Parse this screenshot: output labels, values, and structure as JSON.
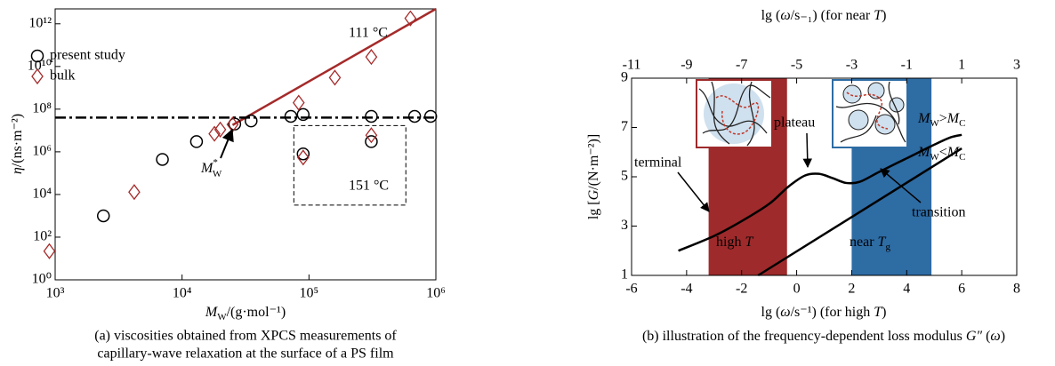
{
  "chart_data": [
    {
      "type": "scatter",
      "xscale": "log",
      "yscale": "log",
      "xlim": [
        1000,
        1000000
      ],
      "ylim": [
        1,
        5000000000000
      ],
      "xticks": [
        {
          "value": 1000,
          "label": "10³"
        },
        {
          "value": 10000,
          "label": "10⁴"
        },
        {
          "value": 100000,
          "label": "10⁵"
        },
        {
          "value": 1000000,
          "label": "10⁶"
        }
      ],
      "yticks": [
        {
          "value": 1,
          "label": "10⁰"
        },
        {
          "value": 100,
          "label": "10²"
        },
        {
          "value": 10000,
          "label": "10⁴"
        },
        {
          "value": 1000000,
          "label": "10⁶"
        },
        {
          "value": 100000000,
          "label": "10⁸"
        },
        {
          "value": 10000000000,
          "label": "10¹⁰"
        },
        {
          "value": 1000000000000,
          "label": "10¹²"
        }
      ],
      "xlabel": [
        "M",
        "W",
        "/(g·mol⁻¹)"
      ],
      "ylabel": [
        "η",
        "/(ns·m⁻²)"
      ],
      "legend": "upper left",
      "series": [
        {
          "name": "present study",
          "marker": "circle",
          "color": "#000000",
          "x": [
            2400,
            7000,
            13000,
            26000,
            35000,
            72000,
            90000,
            90000,
            310000,
            310000,
            680000,
            910000
          ],
          "y": [
            1000,
            440000,
            3000000,
            20000000,
            28000000,
            46000000,
            56000000,
            800000,
            46000000,
            3000000,
            46000000,
            46000000
          ]
        },
        {
          "name": "bulk",
          "marker": "diamond",
          "color": "#a52a2a",
          "x": [
            900,
            4200,
            18000,
            20000,
            25000,
            83000,
            160000,
            310000,
            630000,
            90000,
            310000
          ],
          "y": [
            22,
            13000,
            7000000,
            11000000,
            19000000,
            200000000,
            3000000000,
            28000000000,
            1800000000000,
            540000,
            6000000
          ]
        }
      ],
      "lines": [
        {
          "color": "#a52a2a",
          "style": "solid",
          "x": [
            25000,
            1000000
          ],
          "y": [
            18000000,
            5000000000000
          ]
        },
        {
          "color": "#000000",
          "style": "dashdot",
          "x": [
            1000,
            1000000
          ],
          "y": [
            40000000,
            40000000
          ]
        }
      ],
      "box": {
        "x": [
          76000,
          580000
        ],
        "y": [
          3200,
          17000000
        ]
      },
      "annotations": {
        "hot": "111 °C",
        "warm": "151 °C",
        "mw": [
          "M",
          "*",
          "W"
        ]
      },
      "caption": [
        "(a) viscosities obtained from XPCS measurements of",
        "capillary-wave relaxation at the surface of a PS film"
      ]
    },
    {
      "type": "line",
      "xlim": [
        -6,
        8
      ],
      "ylim": [
        1,
        9
      ],
      "x2lim": [
        -11,
        3
      ],
      "xticks": [
        -6,
        -4,
        -2,
        0,
        2,
        4,
        6,
        8
      ],
      "x2ticks": [
        -11,
        -9,
        -7,
        -5,
        -3,
        -1,
        1,
        3
      ],
      "yticks": [
        1,
        3,
        5,
        7,
        9
      ],
      "xlabel": [
        "lg (",
        "ω",
        "/s⁻¹) (for high ",
        "T",
        ")"
      ],
      "x2label": [
        "lg (",
        "ω",
        "/s₋₁) (for near ",
        "T",
        ")"
      ],
      "ylabel": [
        "lg [",
        "G",
        "/(N·m⁻²)]"
      ],
      "regions": [
        {
          "x": [
            -3.2,
            -0.35
          ],
          "color": "#9e2a2b",
          "label": [
            "high ",
            "T"
          ]
        },
        {
          "x": [
            2,
            4.9
          ],
          "color": "#2e6ca4",
          "label": [
            "near ",
            "T",
            "g"
          ]
        }
      ],
      "series": [
        {
          "color": "#000000",
          "label": [
            "M",
            "W",
            ">",
            "M",
            "C"
          ],
          "x": [
            -4.3,
            -3,
            -2,
            -1,
            -0.3,
            0.3,
            0.8,
            1.3,
            1.8,
            2.3,
            3,
            4,
            5,
            5.6,
            6
          ],
          "y": [
            2,
            2.6,
            3.2,
            3.9,
            4.6,
            5.05,
            5.12,
            4.95,
            4.75,
            4.8,
            5.2,
            5.75,
            6.3,
            6.6,
            6.7
          ]
        },
        {
          "color": "#000000",
          "label": [
            "M",
            "W",
            "<",
            "M",
            "C"
          ],
          "x": [
            -1.4,
            6
          ],
          "y": [
            1,
            6.15
          ]
        }
      ],
      "annotations": {
        "terminal": "terminal",
        "plateau": "plateau",
        "transition": "transition"
      },
      "caption": [
        "(b) illustration of the frequency-dependent loss modulus ",
        "G″",
        " (",
        "ω",
        ")"
      ]
    }
  ]
}
